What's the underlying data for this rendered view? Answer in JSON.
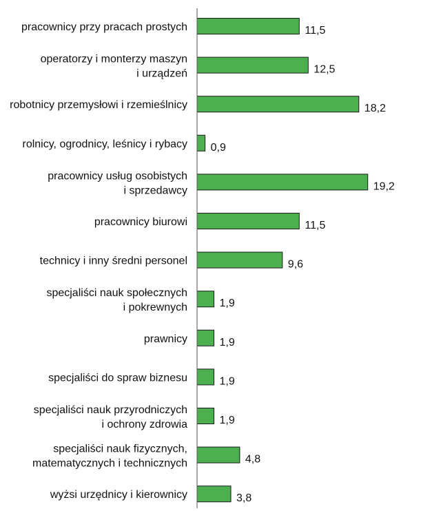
{
  "chart_data": {
    "type": "bar",
    "orientation": "horizontal",
    "categories": [
      [
        "pracownicy przy pracach prostych"
      ],
      [
        "operatorzy i monterzy maszyn",
        "i urządzeń"
      ],
      [
        "robotnicy przemysłowi i rzemieślnicy"
      ],
      [
        "rolnicy, ogrodnicy, leśnicy i rybacy"
      ],
      [
        "pracownicy usług osobistych",
        "i sprzedawcy"
      ],
      [
        "pracownicy biurowi"
      ],
      [
        "technicy i inny średni personel"
      ],
      [
        "specjaliści nauk społecznych",
        "i pokrewnych"
      ],
      [
        "prawnicy"
      ],
      [
        "specjaliści do spraw biznesu"
      ],
      [
        "specjaliści nauk przyrodniczych",
        "i ochrony zdrowia"
      ],
      [
        "specjaliści nauk fizycznych,",
        "matematycznych i technicznych"
      ],
      [
        "wyżsi urzędnicy i kierownicy"
      ]
    ],
    "values": [
      11.5,
      12.5,
      18.2,
      0.9,
      19.2,
      11.5,
      9.6,
      1.9,
      1.9,
      1.9,
      1.9,
      4.8,
      3.8
    ],
    "value_labels": [
      "11,5",
      "12,5",
      "18,2",
      "0,9",
      "19,2",
      "11,5",
      "9,6",
      "1,9",
      "1,9",
      "1,9",
      "1,9",
      "4,8",
      "3,8"
    ],
    "bar_color": "#4caf50",
    "bar_stroke": "#1a1a1a",
    "axis_color": "#555555",
    "grid": false,
    "legend": "none"
  }
}
